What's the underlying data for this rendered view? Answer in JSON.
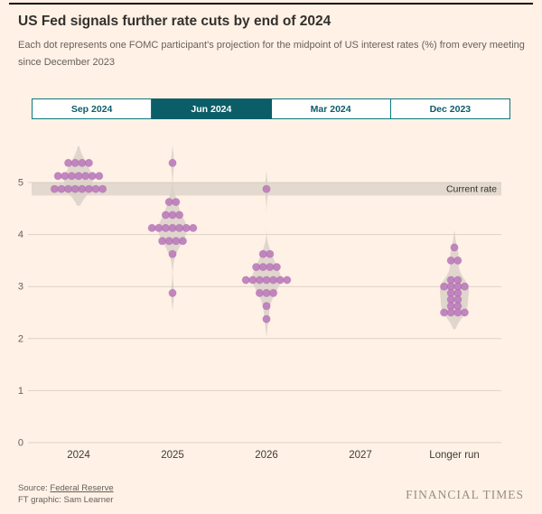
{
  "page": {
    "title": "US Fed signals further rate cuts by end of 2024",
    "subtitle": "Each dot represents one FOMC participant's projection for the midpoint of US interest rates (%) from every meeting since December 2023"
  },
  "tabs": [
    {
      "label": "Sep 2024",
      "selected": false
    },
    {
      "label": "Jun 2024",
      "selected": true
    },
    {
      "label": "Mar 2024",
      "selected": false
    },
    {
      "label": "Dec 2023",
      "selected": false
    }
  ],
  "chart_data": {
    "type": "scatter",
    "subtype": "fomc-dot-plot-with-violins",
    "title": "US Fed signals further rate cuts by end of 2024",
    "selected_meeting": "Jun 2024",
    "xlabel": "",
    "ylabel": "",
    "ylim": [
      0,
      5.6
    ],
    "yticks": [
      0,
      1,
      2,
      3,
      4,
      5
    ],
    "grid": true,
    "categories": [
      "2024",
      "2025",
      "2026",
      "2027",
      "Longer run"
    ],
    "current_rate_band": {
      "label": "Current rate",
      "from": 4.75,
      "to": 5.0
    },
    "series": [
      {
        "category": "2024",
        "dots": [
          {
            "value": 5.375,
            "count": 4
          },
          {
            "value": 5.125,
            "count": 7
          },
          {
            "value": 4.875,
            "count": 8
          }
        ]
      },
      {
        "category": "2025",
        "dots": [
          {
            "value": 5.375,
            "count": 1
          },
          {
            "value": 4.625,
            "count": 2
          },
          {
            "value": 4.375,
            "count": 3
          },
          {
            "value": 4.125,
            "count": 7
          },
          {
            "value": 3.875,
            "count": 4
          },
          {
            "value": 3.625,
            "count": 1
          },
          {
            "value": 2.875,
            "count": 1
          }
        ]
      },
      {
        "category": "2026",
        "dots": [
          {
            "value": 4.875,
            "count": 1
          },
          {
            "value": 3.625,
            "count": 2
          },
          {
            "value": 3.375,
            "count": 4
          },
          {
            "value": 3.125,
            "count": 7
          },
          {
            "value": 2.875,
            "count": 3
          },
          {
            "value": 2.625,
            "count": 1
          },
          {
            "value": 2.375,
            "count": 1
          }
        ]
      },
      {
        "category": "2027",
        "dots": []
      },
      {
        "category": "Longer run",
        "dots": [
          {
            "value": 3.75,
            "count": 1
          },
          {
            "value": 3.5,
            "count": 2
          },
          {
            "value": 3.125,
            "count": 2
          },
          {
            "value": 3.0,
            "count": 4
          },
          {
            "value": 2.875,
            "count": 2
          },
          {
            "value": 2.75,
            "count": 2
          },
          {
            "value": 2.625,
            "count": 2
          },
          {
            "value": 2.5,
            "count": 4
          }
        ]
      }
    ]
  },
  "footer": {
    "source_prefix": "Source: ",
    "source_link": "Federal Reserve",
    "credit": "FT graphic: Sam Learner",
    "brand": "FINANCIAL TIMES"
  },
  "colors": {
    "background": "#FFF1E5",
    "accent_teal": "#0D7680",
    "accent_teal_dark": "#0B5E68",
    "dot": "#BD7DBD",
    "violin": "#D8D0C7",
    "grid": "#DDD2C6",
    "band": "#CCC5BC",
    "text_dark": "#33302E",
    "text_muted": "#66605C",
    "brand": "#968E82"
  }
}
